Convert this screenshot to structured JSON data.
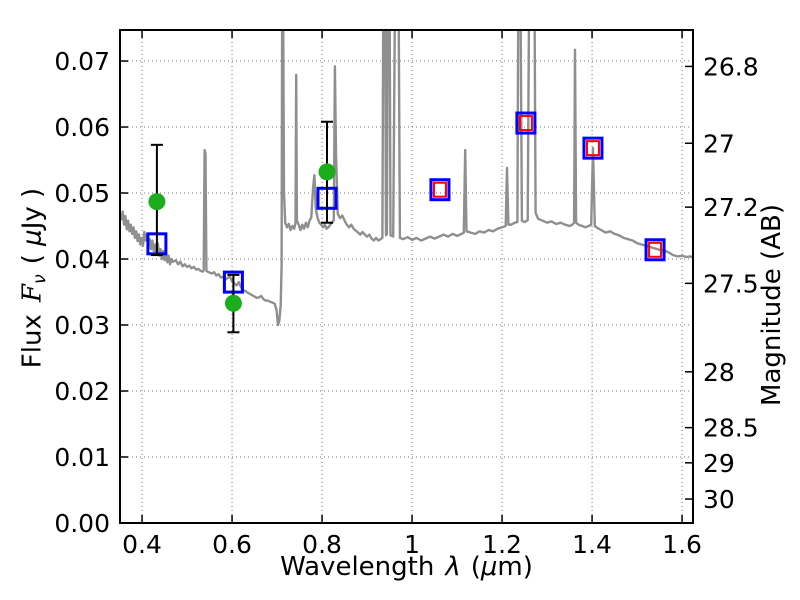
{
  "figure": {
    "labels": {
      "x_word": "Wavelength",
      "x_sym": "λ",
      "x_unit_pre": "(",
      "x_unit_mu": "μ",
      "x_unit_post": "m)",
      "y_left_word": "Flux",
      "y_left_sym": "F",
      "y_left_sub": "ν",
      "y_left_unit_pre": "( ",
      "y_left_unit_mu": "μ",
      "y_left_unit_post": "Jy )",
      "y_right": "Magnitude (AB)"
    },
    "colors": {
      "background": "#ffffff",
      "spine": "#000000",
      "grid": "#777777",
      "tick_text": "#000000",
      "spectrum": "#8f8f8f",
      "observed_green": "#1bad1b",
      "errorbar": "#000000",
      "model_blue": "#0000ff",
      "model_red": "#ff0000"
    }
  },
  "chart_data": {
    "type": "line+scatter",
    "title": "",
    "xlabel": "Wavelength λ (μm)",
    "ylabel_left": "Flux Fν (μJy)",
    "ylabel_right": "Magnitude (AB)",
    "xlim": [
      0.351,
      1.6243
    ],
    "ylim": [
      0,
      0.0747
    ],
    "grid": "dotted",
    "x_ticks": [
      {
        "v": 0.4,
        "label": "0.4"
      },
      {
        "v": 0.6,
        "label": "0.6"
      },
      {
        "v": 0.8,
        "label": "0.8"
      },
      {
        "v": 1.0,
        "label": "1"
      },
      {
        "v": 1.2,
        "label": "1.2"
      },
      {
        "v": 1.4,
        "label": "1.4"
      },
      {
        "v": 1.6,
        "label": "1.6"
      }
    ],
    "y_ticks_left_flux": [
      {
        "v": 0.0,
        "label": "0.00"
      },
      {
        "v": 0.01,
        "label": "0.01"
      },
      {
        "v": 0.02,
        "label": "0.02"
      },
      {
        "v": 0.03,
        "label": "0.03"
      },
      {
        "v": 0.04,
        "label": "0.04"
      },
      {
        "v": 0.05,
        "label": "0.05"
      },
      {
        "v": 0.06,
        "label": "0.06"
      },
      {
        "v": 0.07,
        "label": "0.07"
      }
    ],
    "y_ticks_right_mag": [
      {
        "label": "26.8",
        "flux_position": 0.06918
      },
      {
        "label": "27",
        "flux_position": 0.05754
      },
      {
        "label": "27.2",
        "flux_position": 0.04786
      },
      {
        "label": "27.5",
        "flux_position": 0.03631
      },
      {
        "label": "28",
        "flux_position": 0.02291
      },
      {
        "label": "28.5",
        "flux_position": 0.01445
      },
      {
        "label": "29",
        "flux_position": 0.00912
      },
      {
        "label": "30",
        "flux_position": 0.00363
      }
    ],
    "series": [
      {
        "name": "model spectrum",
        "type": "line",
        "color": "#8f8f8f",
        "points": [
          [
            0.351,
            0.0468
          ],
          [
            0.354,
            0.046
          ],
          [
            0.357,
            0.0472
          ],
          [
            0.36,
            0.0452
          ],
          [
            0.363,
            0.0465
          ],
          [
            0.366,
            0.0445
          ],
          [
            0.369,
            0.0458
          ],
          [
            0.372,
            0.0442
          ],
          [
            0.375,
            0.0452
          ],
          [
            0.378,
            0.0438
          ],
          [
            0.381,
            0.0448
          ],
          [
            0.384,
            0.0432
          ],
          [
            0.387,
            0.0442
          ],
          [
            0.39,
            0.0427
          ],
          [
            0.393,
            0.0437
          ],
          [
            0.396,
            0.0422
          ],
          [
            0.399,
            0.0432
          ],
          [
            0.402,
            0.042
          ],
          [
            0.405,
            0.0441
          ],
          [
            0.408,
            0.0428
          ],
          [
            0.411,
            0.0438
          ],
          [
            0.414,
            0.042
          ],
          [
            0.417,
            0.043
          ],
          [
            0.42,
            0.0415
          ],
          [
            0.423,
            0.0428
          ],
          [
            0.426,
            0.0412
          ],
          [
            0.429,
            0.0422
          ],
          [
            0.432,
            0.0408
          ],
          [
            0.435,
            0.0424
          ],
          [
            0.438,
            0.0405
          ],
          [
            0.441,
            0.0415
          ],
          [
            0.444,
            0.04
          ],
          [
            0.447,
            0.0412
          ],
          [
            0.45,
            0.0398
          ],
          [
            0.453,
            0.0408
          ],
          [
            0.456,
            0.0395
          ],
          [
            0.459,
            0.0405
          ],
          [
            0.462,
            0.0392
          ],
          [
            0.465,
            0.04
          ],
          [
            0.468,
            0.0396
          ],
          [
            0.475,
            0.0398
          ],
          [
            0.48,
            0.0392
          ],
          [
            0.485,
            0.0396
          ],
          [
            0.49,
            0.0389
          ],
          [
            0.495,
            0.0392
          ],
          [
            0.5,
            0.0388
          ],
          [
            0.505,
            0.039
          ],
          [
            0.51,
            0.0386
          ],
          [
            0.515,
            0.0388
          ],
          [
            0.52,
            0.0384
          ],
          [
            0.525,
            0.0385
          ],
          [
            0.53,
            0.0382
          ],
          [
            0.535,
            0.0381
          ],
          [
            0.537,
            0.0383
          ],
          [
            0.539,
            0.0565
          ],
          [
            0.541,
            0.056
          ],
          [
            0.543,
            0.0382
          ],
          [
            0.548,
            0.038
          ],
          [
            0.555,
            0.0378
          ],
          [
            0.56,
            0.038
          ],
          [
            0.565,
            0.0375
          ],
          [
            0.57,
            0.0377
          ],
          [
            0.575,
            0.0372
          ],
          [
            0.58,
            0.0373
          ],
          [
            0.585,
            0.0369
          ],
          [
            0.59,
            0.0371
          ],
          [
            0.595,
            0.0374
          ],
          [
            0.6,
            0.0366
          ],
          [
            0.605,
            0.0363
          ],
          [
            0.61,
            0.036
          ],
          [
            0.615,
            0.0365
          ],
          [
            0.62,
            0.0357
          ],
          [
            0.625,
            0.0353
          ],
          [
            0.63,
            0.0351
          ],
          [
            0.635,
            0.0349
          ],
          [
            0.64,
            0.0347
          ],
          [
            0.645,
            0.0345
          ],
          [
            0.65,
            0.0343
          ],
          [
            0.655,
            0.0341
          ],
          [
            0.66,
            0.0342
          ],
          [
            0.665,
            0.0344
          ],
          [
            0.67,
            0.0339
          ],
          [
            0.675,
            0.0337
          ],
          [
            0.68,
            0.0337
          ],
          [
            0.685,
            0.0335
          ],
          [
            0.69,
            0.0334
          ],
          [
            0.695,
            0.0332
          ],
          [
            0.699,
            0.0322
          ],
          [
            0.702,
            0.03
          ],
          [
            0.705,
            0.0306
          ],
          [
            0.708,
            0.033
          ],
          [
            0.71,
            0.039
          ],
          [
            0.7115,
            0.08
          ],
          [
            0.7135,
            0.08
          ],
          [
            0.7155,
            0.05
          ],
          [
            0.718,
            0.0455
          ],
          [
            0.722,
            0.0448
          ],
          [
            0.726,
            0.0453
          ],
          [
            0.73,
            0.0444
          ],
          [
            0.734,
            0.045
          ],
          [
            0.738,
            0.0446
          ],
          [
            0.741,
            0.0455
          ],
          [
            0.7425,
            0.0679
          ],
          [
            0.744,
            0.0458
          ],
          [
            0.748,
            0.0452
          ],
          [
            0.752,
            0.0444
          ],
          [
            0.756,
            0.0452
          ],
          [
            0.76,
            0.0446
          ],
          [
            0.764,
            0.0455
          ],
          [
            0.768,
            0.0448
          ],
          [
            0.772,
            0.0458
          ],
          [
            0.776,
            0.0463
          ],
          [
            0.78,
            0.0508
          ],
          [
            0.783,
            0.0527
          ],
          [
            0.786,
            0.0476
          ],
          [
            0.79,
            0.0462
          ],
          [
            0.794,
            0.0455
          ],
          [
            0.798,
            0.0452
          ],
          [
            0.802,
            0.0448
          ],
          [
            0.806,
            0.0452
          ],
          [
            0.81,
            0.0446
          ],
          [
            0.814,
            0.0448
          ],
          [
            0.818,
            0.0452
          ],
          [
            0.822,
            0.0455
          ],
          [
            0.826,
            0.0459
          ],
          [
            0.8285,
            0.0692
          ],
          [
            0.831,
            0.056
          ],
          [
            0.835,
            0.0468
          ],
          [
            0.84,
            0.0462
          ],
          [
            0.845,
            0.0466
          ],
          [
            0.85,
            0.0458
          ],
          [
            0.855,
            0.0452
          ],
          [
            0.86,
            0.0448
          ],
          [
            0.865,
            0.0452
          ],
          [
            0.87,
            0.0446
          ],
          [
            0.875,
            0.0443
          ],
          [
            0.88,
            0.044
          ],
          [
            0.885,
            0.0437
          ],
          [
            0.89,
            0.0441
          ],
          [
            0.895,
            0.0437
          ],
          [
            0.9,
            0.0434
          ],
          [
            0.905,
            0.0437
          ],
          [
            0.91,
            0.0431
          ],
          [
            0.915,
            0.0428
          ],
          [
            0.92,
            0.0432
          ],
          [
            0.925,
            0.0428
          ],
          [
            0.93,
            0.043
          ],
          [
            0.934,
            0.0432
          ],
          [
            0.936,
            0.08
          ],
          [
            0.94,
            0.08
          ],
          [
            0.942,
            0.0436
          ],
          [
            0.944,
            0.0438
          ],
          [
            0.946,
            0.08
          ],
          [
            0.95,
            0.08
          ],
          [
            0.952,
            0.0436
          ],
          [
            0.958,
            0.0434
          ],
          [
            0.962,
            0.08
          ],
          [
            0.97,
            0.08
          ],
          [
            0.973,
            0.0432
          ],
          [
            0.98,
            0.043
          ],
          [
            0.99,
            0.0433
          ],
          [
            1.0,
            0.0429
          ],
          [
            1.01,
            0.0432
          ],
          [
            1.02,
            0.0428
          ],
          [
            1.03,
            0.0431
          ],
          [
            1.04,
            0.0434
          ],
          [
            1.05,
            0.0431
          ],
          [
            1.06,
            0.0434
          ],
          [
            1.07,
            0.0437
          ],
          [
            1.08,
            0.0434
          ],
          [
            1.09,
            0.0438
          ],
          [
            1.1,
            0.0435
          ],
          [
            1.11,
            0.0438
          ],
          [
            1.115,
            0.044
          ],
          [
            1.118,
            0.0565
          ],
          [
            1.121,
            0.0442
          ],
          [
            1.13,
            0.044
          ],
          [
            1.14,
            0.0438
          ],
          [
            1.15,
            0.0442
          ],
          [
            1.16,
            0.044
          ],
          [
            1.17,
            0.0444
          ],
          [
            1.18,
            0.0442
          ],
          [
            1.19,
            0.0446
          ],
          [
            1.2,
            0.0448
          ],
          [
            1.208,
            0.045
          ],
          [
            1.211,
            0.0538
          ],
          [
            1.214,
            0.0452
          ],
          [
            1.22,
            0.0452
          ],
          [
            1.228,
            0.0455
          ],
          [
            1.234,
            0.0456
          ],
          [
            1.236,
            0.08
          ],
          [
            1.241,
            0.08
          ],
          [
            1.244,
            0.0458
          ],
          [
            1.25,
            0.0456
          ],
          [
            1.257,
            0.0459
          ],
          [
            1.26,
            0.08
          ],
          [
            1.272,
            0.08
          ],
          [
            1.2745,
            0.047
          ],
          [
            1.28,
            0.0461
          ],
          [
            1.29,
            0.0458
          ],
          [
            1.3,
            0.0455
          ],
          [
            1.31,
            0.0457
          ],
          [
            1.32,
            0.0453
          ],
          [
            1.33,
            0.0455
          ],
          [
            1.34,
            0.0452
          ],
          [
            1.35,
            0.045
          ],
          [
            1.356,
            0.0452
          ],
          [
            1.36,
            0.0455
          ],
          [
            1.362,
            0.0717
          ],
          [
            1.3645,
            0.0455
          ],
          [
            1.37,
            0.0452
          ],
          [
            1.378,
            0.045
          ],
          [
            1.385,
            0.0448
          ],
          [
            1.392,
            0.045
          ],
          [
            1.398,
            0.0452
          ],
          [
            1.402,
            0.0568
          ],
          [
            1.406,
            0.045
          ],
          [
            1.412,
            0.0447
          ],
          [
            1.42,
            0.0444
          ],
          [
            1.43,
            0.044
          ],
          [
            1.44,
            0.0442
          ],
          [
            1.45,
            0.0438
          ],
          [
            1.46,
            0.0436
          ],
          [
            1.47,
            0.0432
          ],
          [
            1.48,
            0.043
          ],
          [
            1.49,
            0.0428
          ],
          [
            1.5,
            0.0424
          ],
          [
            1.51,
            0.0422
          ],
          [
            1.52,
            0.042
          ],
          [
            1.53,
            0.0418
          ],
          [
            1.54,
            0.0416
          ],
          [
            1.55,
            0.0414
          ],
          [
            1.56,
            0.0413
          ],
          [
            1.57,
            0.041
          ],
          [
            1.58,
            0.0406
          ],
          [
            1.59,
            0.0404
          ],
          [
            1.6,
            0.0405
          ],
          [
            1.61,
            0.0403
          ],
          [
            1.618,
            0.0404
          ],
          [
            1.6243,
            0.0402
          ]
        ]
      },
      {
        "name": "observed photometry (green circles with error bars)",
        "type": "scatter",
        "marker": "filled-circle",
        "color": "#1bad1b",
        "points": [
          {
            "x": 0.433,
            "y": 0.0487,
            "err_lo": 0.0406,
            "err_hi": 0.0573
          },
          {
            "x": 0.603,
            "y": 0.0333,
            "err_lo": 0.0289,
            "err_hi": 0.0376
          },
          {
            "x": 0.811,
            "y": 0.0532,
            "err_lo": 0.0455,
            "err_hi": 0.0608
          }
        ]
      },
      {
        "name": "model photometry (blue open squares)",
        "type": "scatter",
        "marker": "open-square",
        "color": "#0000ff",
        "points": [
          {
            "x": 0.433,
            "y": 0.0423
          },
          {
            "x": 0.603,
            "y": 0.0365
          },
          {
            "x": 0.811,
            "y": 0.0492
          },
          {
            "x": 1.062,
            "y": 0.0505
          },
          {
            "x": 1.253,
            "y": 0.0606
          },
          {
            "x": 1.402,
            "y": 0.0568
          },
          {
            "x": 1.54,
            "y": 0.0414
          }
        ]
      },
      {
        "name": "model photometry (red open squares)",
        "type": "scatter",
        "marker": "open-square-small",
        "color": "#ff0000",
        "points": [
          {
            "x": 1.062,
            "y": 0.0505
          },
          {
            "x": 1.253,
            "y": 0.0606
          },
          {
            "x": 1.402,
            "y": 0.0568
          },
          {
            "x": 1.54,
            "y": 0.0414
          }
        ]
      }
    ]
  }
}
